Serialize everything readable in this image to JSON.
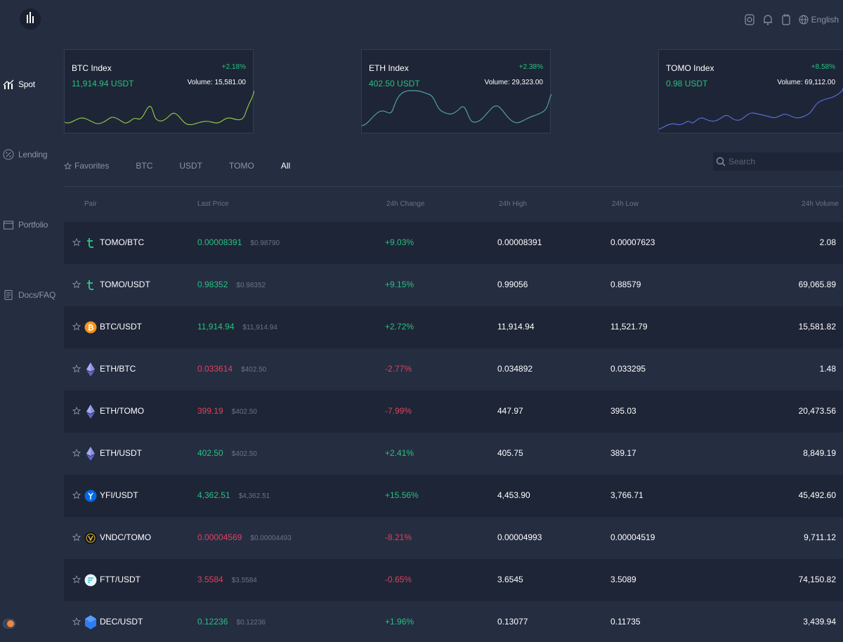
{
  "sidebar": {
    "items": [
      {
        "label": "Spot",
        "icon": "chart-bars-icon",
        "active": true
      },
      {
        "label": "Lending",
        "icon": "percent-icon",
        "active": false
      },
      {
        "label": "Portfolio",
        "icon": "folder-icon",
        "active": false
      },
      {
        "label": "Docs/FAQ",
        "icon": "document-icon",
        "active": false
      }
    ]
  },
  "header": {
    "language": "English"
  },
  "indices": [
    {
      "title": "BTC Index",
      "change": "+2.18%",
      "price": "11,914.94 USDT",
      "volume": "Volume: 15,581.00",
      "color": "#8bc34a"
    },
    {
      "title": "ETH Index",
      "change": "+2.38%",
      "price": "402.50 USDT",
      "volume": "Volume: 29,323.00",
      "color": "#4fa0a8"
    },
    {
      "title": "TOMO Index",
      "change": "+8.58%",
      "price": "0.98 USDT",
      "volume": "Volume: 69,112.00",
      "color": "#5b6bd8"
    }
  ],
  "tabs": [
    "Favorites",
    "BTC",
    "USDT",
    "TOMO",
    "All"
  ],
  "active_tab": "All",
  "search": {
    "placeholder": "Search"
  },
  "columns": {
    "pair": "Pair",
    "last_price": "Last Price",
    "change": "24h Change",
    "high": "24h High",
    "low": "24h Low",
    "volume": "24h Volume"
  },
  "rows": [
    {
      "pair": "TOMO/BTC",
      "coin": "tomo",
      "price": "0.00008391",
      "usd": "$0.98790",
      "change": "+9.03%",
      "high": "0.00008391",
      "low": "0.00007623",
      "volume": "2.08",
      "up": true
    },
    {
      "pair": "TOMO/USDT",
      "coin": "tomo",
      "price": "0.98352",
      "usd": "$0.98352",
      "change": "+9.15%",
      "high": "0.99056",
      "low": "0.88579",
      "volume": "69,065.89",
      "up": true
    },
    {
      "pair": "BTC/USDT",
      "coin": "btc",
      "price": "11,914.94",
      "usd": "$11,914.94",
      "change": "+2.72%",
      "high": "11,914.94",
      "low": "11,521.79",
      "volume": "15,581.82",
      "up": true
    },
    {
      "pair": "ETH/BTC",
      "coin": "eth",
      "price": "0.033614",
      "usd": "$402.50",
      "change": "-2.77%",
      "high": "0.034892",
      "low": "0.033295",
      "volume": "1.48",
      "up": false
    },
    {
      "pair": "ETH/TOMO",
      "coin": "eth",
      "price": "399.19",
      "usd": "$402.50",
      "change": "-7.99%",
      "high": "447.97",
      "low": "395.03",
      "volume": "20,473.56",
      "up": false
    },
    {
      "pair": "ETH/USDT",
      "coin": "eth",
      "price": "402.50",
      "usd": "$402.50",
      "change": "+2.41%",
      "high": "405.75",
      "low": "389.17",
      "volume": "8,849.19",
      "up": true
    },
    {
      "pair": "YFI/USDT",
      "coin": "yfi",
      "price": "4,362.51",
      "usd": "$4,362.51",
      "change": "+15.56%",
      "high": "4,453.90",
      "low": "3,766.71",
      "volume": "45,492.60",
      "up": true
    },
    {
      "pair": "VNDC/TOMO",
      "coin": "vndc",
      "price": "0.00004569",
      "usd": "$0.00004493",
      "change": "-8.21%",
      "high": "0.00004993",
      "low": "0.00004519",
      "volume": "9,711.12",
      "up": false
    },
    {
      "pair": "FTT/USDT",
      "coin": "ftt",
      "price": "3.5584",
      "usd": "$3.5584",
      "change": "-0.65%",
      "high": "3.6545",
      "low": "3.5089",
      "volume": "74,150.82",
      "up": false
    },
    {
      "pair": "DEC/USDT",
      "coin": "dec",
      "price": "0.12236",
      "usd": "$0.12236",
      "change": "+1.96%",
      "high": "0.13077",
      "low": "0.11735",
      "volume": "3,439.94",
      "up": true
    }
  ],
  "colors": {
    "up": "#26c281",
    "down": "#e0415e",
    "background": "#252d41",
    "row_alt": "#1e2536"
  }
}
